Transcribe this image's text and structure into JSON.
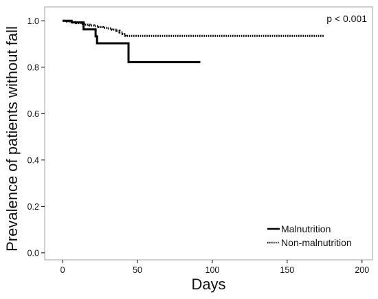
{
  "chart_data": {
    "type": "line",
    "xlabel": "Days",
    "ylabel": "Prevalence of patients without fall",
    "xlim": [
      -12,
      207
    ],
    "ylim": [
      -0.03,
      1.06
    ],
    "xticks": [
      0,
      50,
      100,
      150,
      200
    ],
    "xtick_labels": [
      "0",
      "50",
      "100",
      "150",
      "200"
    ],
    "yticks": [
      0.0,
      0.2,
      0.4,
      0.6,
      0.8,
      1.0
    ],
    "ytick_labels": [
      "0.0",
      "0.2",
      "0.4",
      "0.6",
      "0.8",
      "1.0"
    ],
    "grid": false,
    "legend_position": "bottom-right",
    "annotation": "p < 0.001",
    "series": [
      {
        "name": "Malnutrition",
        "style": "solid",
        "step": true,
        "x": [
          0,
          6,
          14,
          20,
          22,
          23,
          43,
          44,
          92
        ],
        "y": [
          1.0,
          0.993,
          0.963,
          0.963,
          0.933,
          0.903,
          0.903,
          0.822,
          0.822
        ]
      },
      {
        "name": "Non-malnutrition",
        "style": "dotted",
        "step": true,
        "x": [
          0,
          3,
          6,
          9,
          12,
          15,
          18,
          21,
          24,
          27,
          30,
          33,
          36,
          38,
          40,
          42,
          175
        ],
        "y": [
          1.0,
          0.997,
          0.994,
          0.99,
          0.987,
          0.983,
          0.98,
          0.977,
          0.973,
          0.97,
          0.967,
          0.962,
          0.957,
          0.95,
          0.943,
          0.935,
          0.935
        ]
      }
    ]
  },
  "colors": {
    "line": "#000000",
    "frame": "#a0a0a0",
    "background": "#ffffff"
  }
}
